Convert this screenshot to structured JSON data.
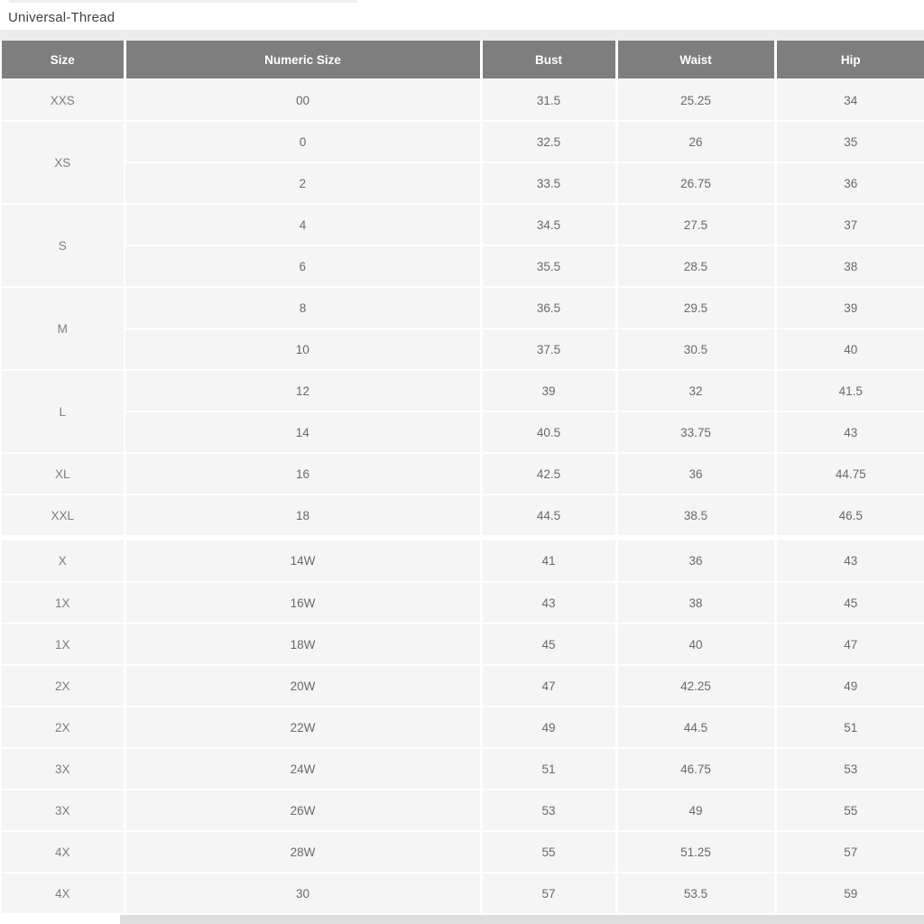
{
  "page": {
    "title": "Universal-Thread"
  },
  "table": {
    "headers": [
      "Size",
      "Numeric Size",
      "Bust",
      "Waist",
      "Hip"
    ],
    "sections": [
      {
        "name": "standard-sizes",
        "groups": [
          {
            "size": "XXS",
            "rows": [
              [
                "00",
                "31.5",
                "25.25",
                "34"
              ]
            ]
          },
          {
            "size": "XS",
            "rows": [
              [
                "0",
                "32.5",
                "26",
                "35"
              ],
              [
                "2",
                "33.5",
                "26.75",
                "36"
              ]
            ]
          },
          {
            "size": "S",
            "rows": [
              [
                "4",
                "34.5",
                "27.5",
                "37"
              ],
              [
                "6",
                "35.5",
                "28.5",
                "38"
              ]
            ]
          },
          {
            "size": "M",
            "rows": [
              [
                "8",
                "36.5",
                "29.5",
                "39"
              ],
              [
                "10",
                "37.5",
                "30.5",
                "40"
              ]
            ]
          },
          {
            "size": "L",
            "rows": [
              [
                "12",
                "39",
                "32",
                "41.5"
              ],
              [
                "14",
                "40.5",
                "33.75",
                "43"
              ]
            ]
          },
          {
            "size": "XL",
            "rows": [
              [
                "16",
                "42.5",
                "36",
                "44.75"
              ]
            ]
          },
          {
            "size": "XXL",
            "rows": [
              [
                "18",
                "44.5",
                "38.5",
                "46.5"
              ]
            ]
          }
        ]
      },
      {
        "name": "plus-sizes",
        "groups": [
          {
            "size": "X",
            "rows": [
              [
                "14W",
                "41",
                "36",
                "43"
              ]
            ]
          },
          {
            "size": "1X",
            "rows": [
              [
                "16W",
                "43",
                "38",
                "45"
              ]
            ]
          },
          {
            "size": "1X",
            "rows": [
              [
                "18W",
                "45",
                "40",
                "47"
              ]
            ]
          },
          {
            "size": "2X",
            "rows": [
              [
                "20W",
                "47",
                "42.25",
                "49"
              ]
            ]
          },
          {
            "size": "2X",
            "rows": [
              [
                "22W",
                "49",
                "44.5",
                "51"
              ]
            ]
          },
          {
            "size": "3X",
            "rows": [
              [
                "24W",
                "51",
                "46.75",
                "53"
              ]
            ]
          },
          {
            "size": "3X",
            "rows": [
              [
                "26W",
                "53",
                "49",
                "55"
              ]
            ]
          },
          {
            "size": "4X",
            "rows": [
              [
                "28W",
                "55",
                "51.25",
                "57"
              ]
            ]
          },
          {
            "size": "4X",
            "rows": [
              [
                "30",
                "57",
                "53.5",
                "59"
              ]
            ]
          }
        ]
      }
    ]
  },
  "colors": {
    "header_bg": "#7e7e7e",
    "header_text": "#ffffff",
    "cell_bg": "#f5f5f5",
    "cell_text": "#696969",
    "title_text": "#414141",
    "band": "#ececec"
  }
}
